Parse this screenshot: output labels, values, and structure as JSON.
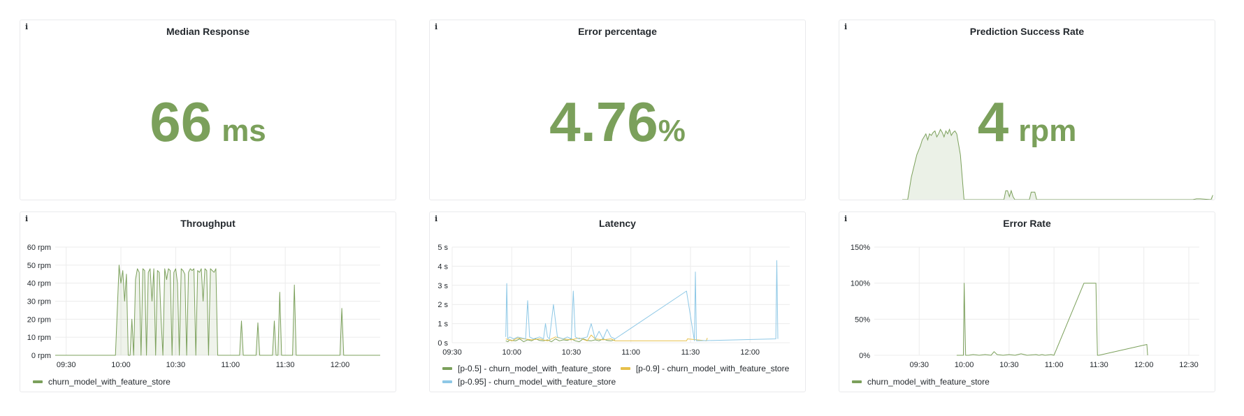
{
  "colors": {
    "green": "#7ba05b",
    "yellow": "#e7c04a",
    "blue": "#8ec8e6",
    "grid": "#ececec"
  },
  "stat_panels": [
    {
      "title": "Median Response",
      "value": "66",
      "unit": "ms"
    },
    {
      "title": "Error percentage",
      "value": "4.76",
      "unit": "%"
    },
    {
      "title": "Prediction Success Rate",
      "value": "4",
      "unit": "rpm"
    }
  ],
  "chart_data": [
    {
      "type": "line",
      "title": "Throughput",
      "x_ticks": [
        "09:30",
        "10:00",
        "10:30",
        "11:00",
        "11:30",
        "12:00"
      ],
      "y_ticks": [
        "0 rpm",
        "10 rpm",
        "20 rpm",
        "30 rpm",
        "40 rpm",
        "50 rpm",
        "60 rpm"
      ],
      "ylim": [
        0,
        60
      ],
      "xlim_minutes_after_0930": [
        -6,
        172
      ],
      "series": [
        {
          "name": "churn_model_with_feature_store",
          "color": "#7ba05b",
          "fill": true,
          "x_minutes_after_0930": [
            -6,
            27,
            29,
            30,
            31,
            32,
            33,
            34,
            35,
            36,
            37,
            38,
            39,
            40,
            41,
            42,
            43,
            44,
            45,
            46,
            47,
            48,
            49,
            50,
            51,
            52,
            53,
            54,
            55,
            56,
            57,
            58,
            59,
            60,
            61,
            62,
            63,
            64,
            65,
            66,
            67,
            68,
            69,
            70,
            71,
            72,
            73,
            74,
            75,
            76,
            77,
            78,
            79,
            80,
            81,
            82,
            83,
            84,
            85,
            86,
            88,
            95,
            96,
            97,
            98,
            104,
            105,
            106,
            113,
            114,
            115,
            116,
            117,
            118,
            124,
            125,
            126,
            127,
            150,
            151,
            152,
            172
          ],
          "values": [
            0,
            0,
            50,
            40,
            47,
            30,
            45,
            0,
            0,
            20,
            0,
            42,
            48,
            46,
            0,
            48,
            47,
            0,
            46,
            48,
            30,
            48,
            0,
            47,
            46,
            20,
            0,
            48,
            42,
            48,
            47,
            0,
            46,
            48,
            40,
            0,
            48,
            47,
            45,
            0,
            46,
            48,
            47,
            48,
            0,
            47,
            46,
            48,
            30,
            48,
            47,
            0,
            48,
            47,
            46,
            48,
            0,
            0,
            0,
            0,
            0,
            0,
            19,
            0,
            0,
            0,
            18,
            0,
            0,
            19,
            0,
            0,
            35,
            0,
            0,
            39,
            0,
            0,
            0,
            26,
            0,
            0
          ]
        }
      ]
    },
    {
      "type": "line",
      "title": "Latency",
      "x_ticks": [
        "09:30",
        "10:00",
        "10:30",
        "11:00",
        "11:30",
        "12:00"
      ],
      "y_ticks": [
        "0 s",
        "1 s",
        "2 s",
        "3 s",
        "4 s",
        "5 s"
      ],
      "ylim": [
        0,
        5
      ],
      "xlim_minutes_after_0930": [
        0,
        170
      ],
      "series": [
        {
          "name": "[p-0.5] - churn_model_with_feature_store",
          "color": "#7ba05b",
          "x_minutes_after_0930": [
            27,
            28,
            29,
            30,
            32,
            34,
            36,
            38,
            40,
            42,
            44,
            46,
            48,
            50,
            52,
            54,
            56,
            58,
            60,
            62,
            64,
            66,
            68,
            70,
            72,
            74,
            76,
            78,
            80,
            82
          ],
          "values": [
            0.1,
            0.05,
            0.15,
            0.12,
            0.1,
            0.2,
            0.05,
            0.15,
            0.1,
            0.2,
            0.12,
            0.1,
            0.15,
            0.05,
            0.2,
            0.1,
            0.15,
            0.12,
            0.2,
            0.1,
            0.05,
            0.2,
            0.12,
            0.1,
            0.15,
            0.1,
            0.2,
            0.12,
            0.1,
            0.15
          ]
        },
        {
          "name": "[p-0.9] - churn_model_with_feature_store",
          "color": "#e7c04a",
          "x_minutes_after_0930": [
            27,
            30,
            33,
            36,
            40,
            44,
            48,
            52,
            56,
            60,
            64,
            68,
            70,
            72,
            76,
            80,
            82,
            118,
            118.5,
            128,
            128.5
          ],
          "values": [
            0.2,
            0.1,
            0.25,
            0.2,
            0.15,
            0.2,
            0.1,
            0.3,
            0.2,
            0.15,
            0.25,
            0.1,
            0.4,
            0.2,
            0.15,
            0.2,
            0.1,
            0.1,
            0.2,
            0.1,
            0.25
          ]
        },
        {
          "name": "[p-0.95] - churn_model_with_feature_store",
          "color": "#8ec8e6",
          "x_minutes_after_0930": [
            27,
            27.5,
            28,
            29,
            31,
            33,
            37,
            38,
            39,
            41,
            44,
            46,
            47,
            48,
            49,
            51,
            53,
            56,
            58,
            60,
            61,
            62,
            64,
            68,
            70,
            72,
            74,
            76,
            78,
            80,
            82,
            118,
            122,
            122.5,
            123,
            163,
            163.5,
            164
          ],
          "values": [
            0.3,
            3.1,
            0.2,
            0.3,
            0.2,
            0.3,
            0.2,
            2.2,
            0.3,
            0.2,
            0.3,
            0.2,
            1.0,
            0.3,
            0.2,
            2.0,
            0.3,
            0.2,
            0.3,
            0.2,
            2.7,
            0.3,
            0.2,
            0.3,
            1.0,
            0.2,
            0.6,
            0.2,
            0.7,
            0.3,
            0.2,
            2.7,
            0.1,
            3.7,
            0.1,
            0.2,
            4.3,
            0.2
          ]
        }
      ]
    },
    {
      "type": "line",
      "title": "Error Rate",
      "x_ticks": [
        "09:30",
        "10:00",
        "10:30",
        "11:00",
        "11:30",
        "12:00",
        "12:30"
      ],
      "y_ticks": [
        "0%",
        "50%",
        "100%",
        "150%"
      ],
      "ylim": [
        0,
        150
      ],
      "xlim_minutes_after_0930": [
        -30,
        187
      ],
      "series": [
        {
          "name": "churn_model_with_feature_store",
          "color": "#7ba05b",
          "x_minutes_after_0930": [
            25,
            26,
            29.5,
            30,
            30.5,
            31,
            32,
            33,
            36,
            40,
            44,
            48,
            50,
            52,
            56,
            60,
            64,
            68,
            72,
            78,
            80,
            82,
            84,
            88,
            90,
            110,
            116,
            118,
            118.5,
            119,
            120,
            152,
            152.5
          ],
          "values": [
            0,
            0,
            0,
            100,
            50,
            0,
            0,
            0,
            1,
            0,
            1,
            0,
            5,
            1,
            0,
            1,
            0,
            2,
            0,
            1,
            0,
            1,
            0,
            1,
            0,
            100,
            100,
            100,
            50,
            0,
            0,
            15,
            0
          ]
        }
      ]
    }
  ],
  "sparkline": {
    "x_minutes_after_0930": [
      0,
      3,
      5,
      8,
      10,
      11,
      12,
      13,
      14,
      15,
      16,
      17,
      18,
      19,
      20,
      21,
      22,
      23,
      24,
      25,
      26,
      27,
      28,
      29,
      30,
      32,
      34,
      36,
      38,
      40,
      56,
      57,
      58,
      59,
      60,
      61,
      62,
      70,
      71,
      72,
      73,
      74,
      80,
      160,
      162,
      164,
      170,
      171
    ],
    "values": [
      0,
      0,
      15,
      30,
      36,
      40,
      42,
      44,
      40,
      44,
      43,
      45,
      46,
      42,
      44,
      47,
      45,
      42,
      46,
      44,
      47,
      43,
      45,
      46,
      44,
      30,
      0,
      0,
      0,
      0,
      0,
      6,
      6,
      2,
      6,
      2,
      0,
      0,
      5,
      5,
      5,
      0,
      0,
      0,
      0.5,
      0.5,
      0,
      3
    ],
    "ymax": 50,
    "xmax": 172
  }
}
